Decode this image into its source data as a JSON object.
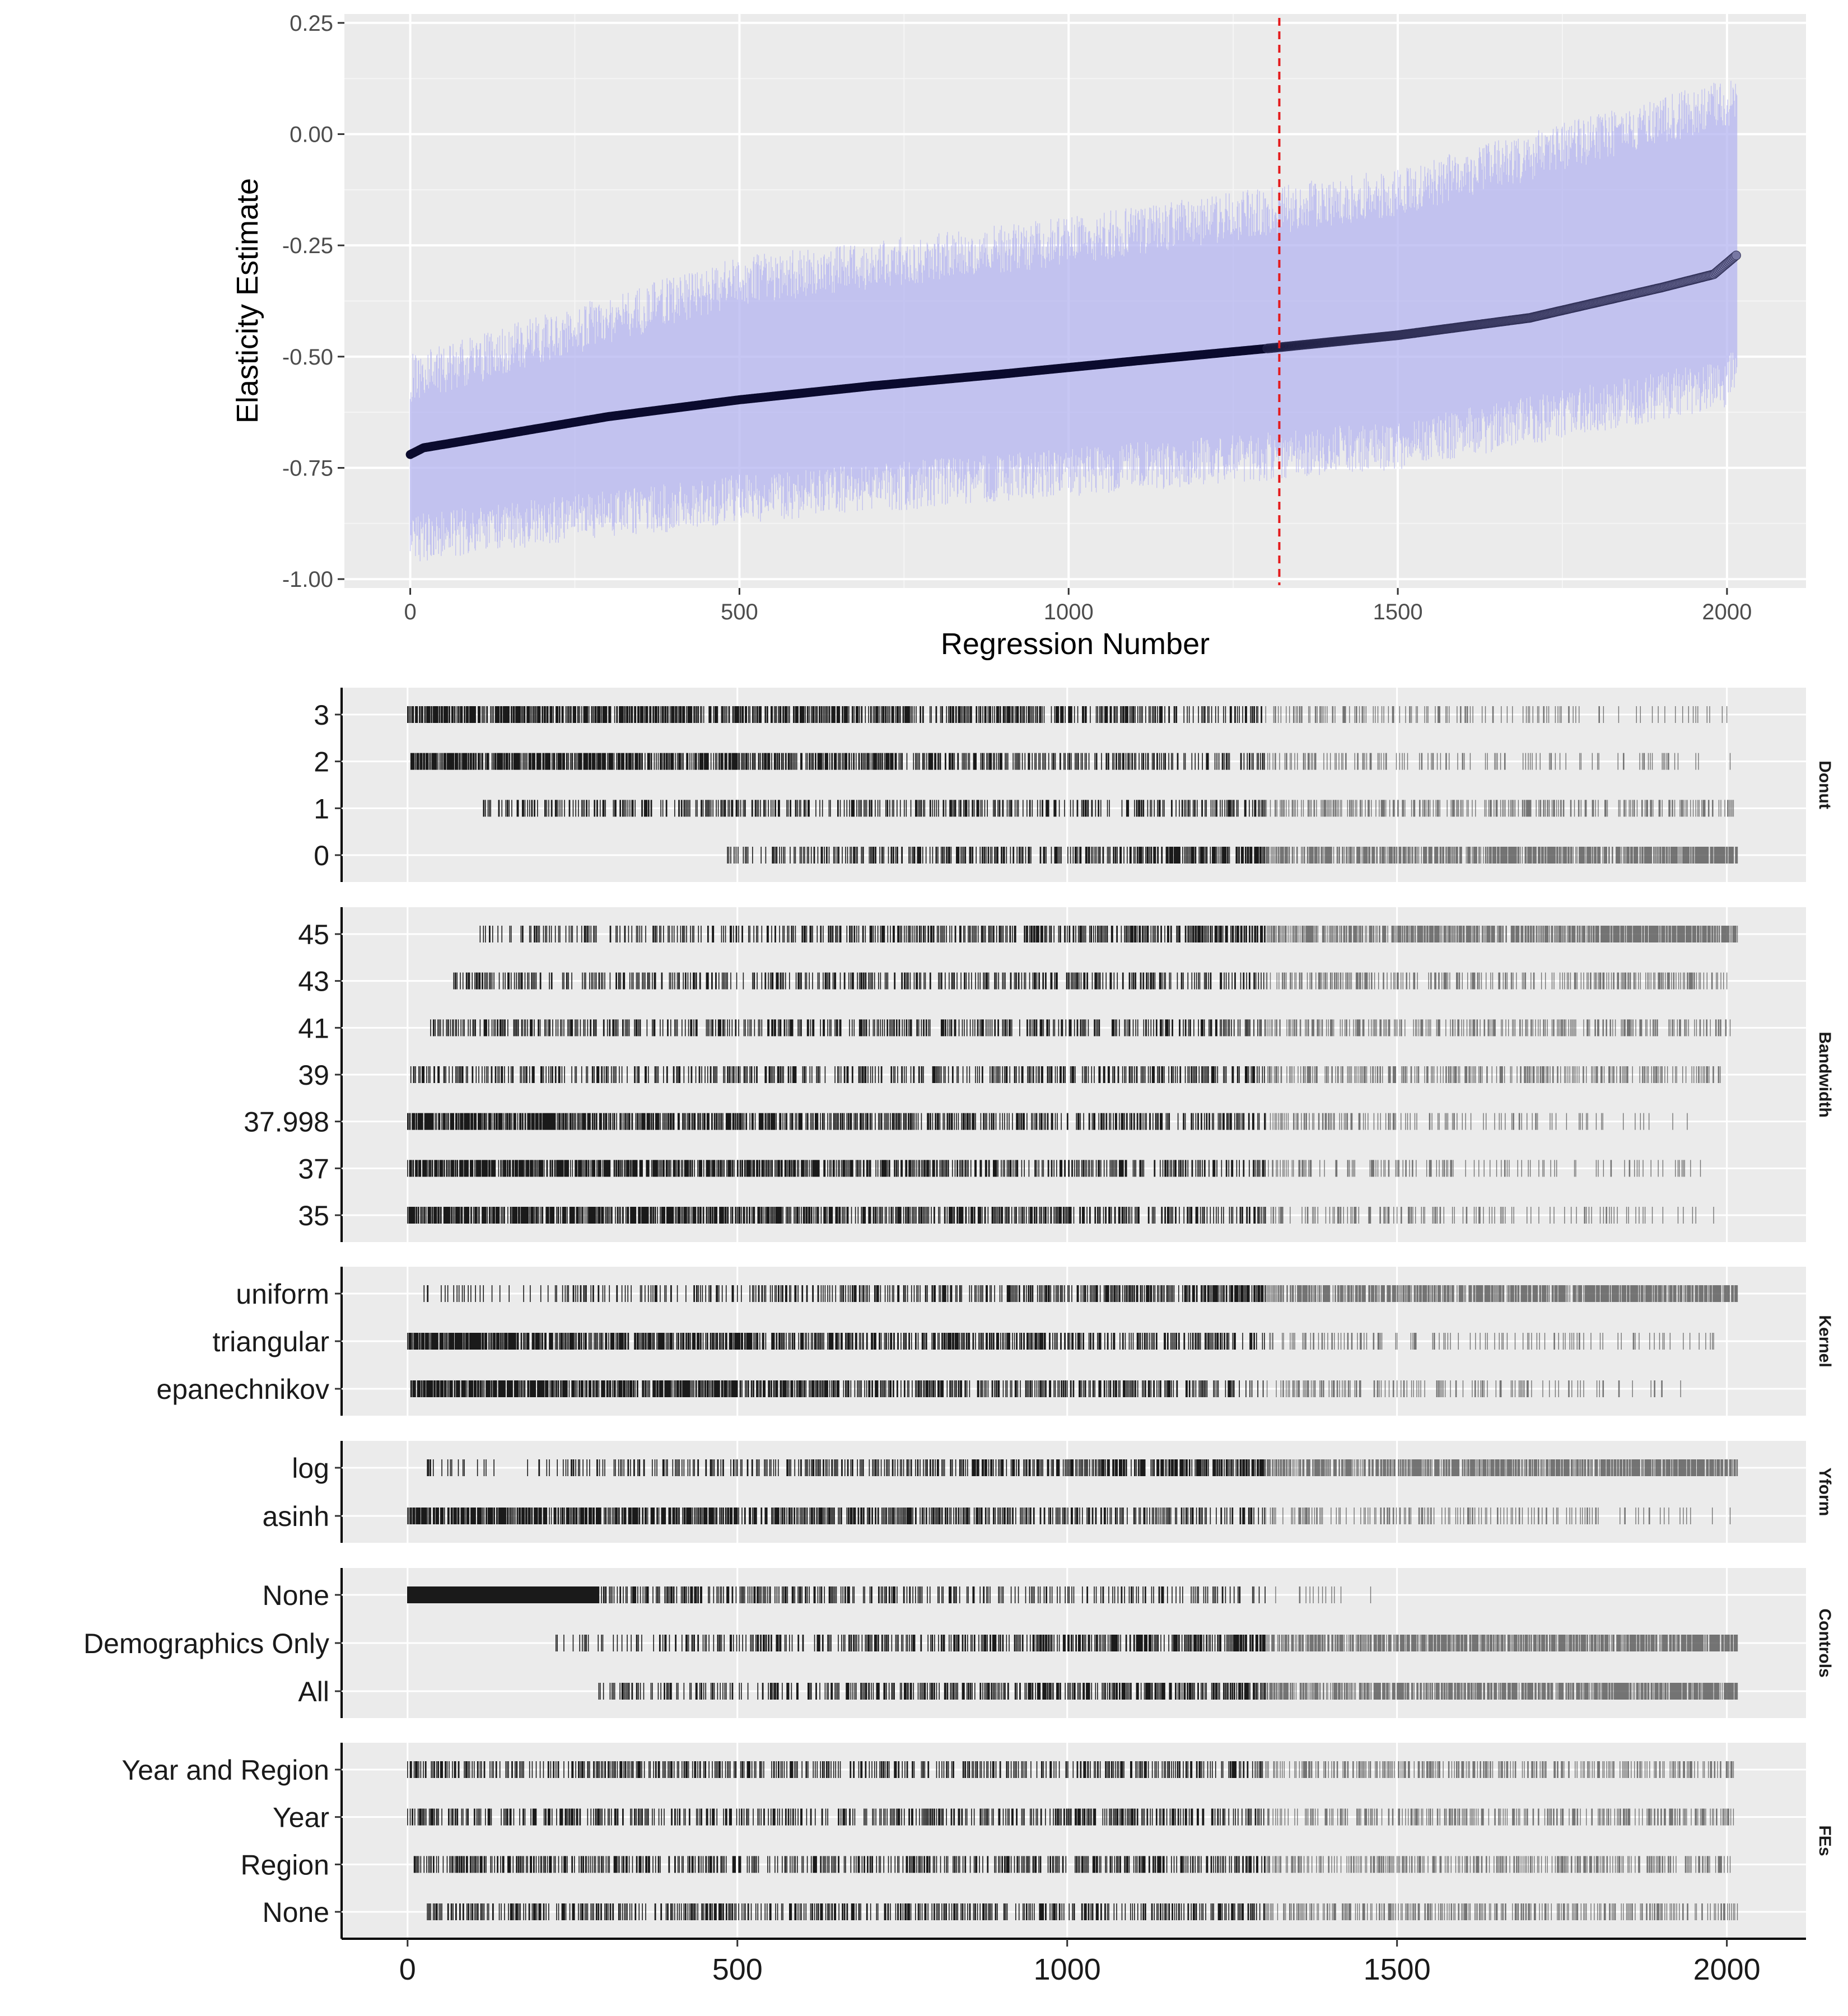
{
  "chart_data": [
    {
      "type": "scatter",
      "panel": "estimates",
      "title": "",
      "xlabel": "Regression Number",
      "ylabel": "Elasticity Estimate",
      "xlim": [
        -100,
        2120
      ],
      "ylim": [
        -1.02,
        0.27
      ],
      "x_ticks": [
        "0",
        "500",
        "1000",
        "1500",
        "2000"
      ],
      "y_ticks": [
        "0.25",
        "0.00",
        "-0.25",
        "-0.50",
        "-0.75",
        "-1.00"
      ],
      "y_tick_values": [
        0.25,
        0.0,
        -0.25,
        -0.5,
        -0.75,
        -1.0
      ],
      "n_regressions": 2016,
      "vline_x": 1320,
      "vline_color": "#e41a1c",
      "point_color_low": "#0b0b2e",
      "point_color_high": "#7777a3",
      "ci_color": "#b4b4f0",
      "estimate_curve": {
        "x": [
          0,
          20,
          100,
          300,
          500,
          700,
          900,
          1100,
          1300,
          1500,
          1700,
          1900,
          1980,
          2016
        ],
        "y": [
          -0.72,
          -0.705,
          -0.685,
          -0.635,
          -0.597,
          -0.566,
          -0.539,
          -0.51,
          -0.482,
          -0.452,
          -0.413,
          -0.345,
          -0.315,
          -0.27
        ]
      },
      "ci_lower_curve": {
        "x": [
          0,
          500,
          1000,
          1500,
          2000,
          2016
        ],
        "y": [
          -0.91,
          -0.82,
          -0.76,
          -0.7,
          -0.56,
          -0.52
        ]
      },
      "ci_upper_curve": {
        "x": [
          0,
          500,
          1000,
          1500,
          2000,
          2016
        ],
        "y": [
          -0.55,
          -0.33,
          -0.24,
          -0.13,
          0.07,
          0.09
        ]
      }
    },
    {
      "type": "scatter",
      "panel": "specification",
      "title": "",
      "xlim": [
        -100,
        2120
      ],
      "x_ticks": [
        "0",
        "500",
        "1000",
        "1500",
        "2000"
      ],
      "x_tick_values": [
        0,
        500,
        1000,
        1500,
        2000
      ],
      "facets": [
        {
          "strip": "Donut",
          "levels": [
            {
              "label": "3",
              "start": 0,
              "end": 2000,
              "density": "high-early"
            },
            {
              "label": "2",
              "start": 5,
              "end": 2005,
              "density": "high-early"
            },
            {
              "label": "1",
              "start": 115,
              "end": 2010,
              "density": "mid"
            },
            {
              "label": "0",
              "start": 485,
              "end": 2016,
              "density": "high-late"
            }
          ]
        },
        {
          "strip": "Bandwidth",
          "levels": [
            {
              "label": "45",
              "start": 110,
              "end": 2016,
              "density": "high-late"
            },
            {
              "label": "43",
              "start": 70,
              "end": 2000,
              "density": "mid"
            },
            {
              "label": "41",
              "start": 35,
              "end": 2005,
              "density": "mid"
            },
            {
              "label": "39",
              "start": 5,
              "end": 1990,
              "density": "mid"
            },
            {
              "label": "37.998",
              "start": 0,
              "end": 1940,
              "density": "high-early"
            },
            {
              "label": "37",
              "start": 0,
              "end": 1960,
              "density": "high-early"
            },
            {
              "label": "35",
              "start": 0,
              "end": 1980,
              "density": "high-early"
            }
          ]
        },
        {
          "strip": "Kernel",
          "levels": [
            {
              "label": "uniform",
              "start": 25,
              "end": 2016,
              "density": "high-late"
            },
            {
              "label": "triangular",
              "start": 0,
              "end": 1980,
              "density": "high-early"
            },
            {
              "label": "epanechnikov",
              "start": 5,
              "end": 1930,
              "density": "high-early"
            }
          ]
        },
        {
          "strip": "Yform",
          "levels": [
            {
              "label": "log",
              "start": 30,
              "end": 2016,
              "density": "high-late"
            },
            {
              "label": "asinh",
              "start": 0,
              "end": 2005,
              "density": "high-early"
            }
          ]
        },
        {
          "strip": "Controls",
          "levels": [
            {
              "label": "None",
              "start": 0,
              "end": 1460,
              "density": "solid-early"
            },
            {
              "label": "Demographics Only",
              "start": 225,
              "end": 2016,
              "density": "high-late"
            },
            {
              "label": "All",
              "start": 290,
              "end": 2016,
              "density": "high-late"
            }
          ]
        },
        {
          "strip": "FEs",
          "levels": [
            {
              "label": "Year and Region",
              "start": 0,
              "end": 2010,
              "density": "mid"
            },
            {
              "label": "Year",
              "start": 0,
              "end": 2010,
              "density": "mid"
            },
            {
              "label": "Region",
              "start": 10,
              "end": 2005,
              "density": "mid"
            },
            {
              "label": "None",
              "start": 30,
              "end": 2016,
              "density": "mid"
            }
          ]
        }
      ]
    }
  ]
}
